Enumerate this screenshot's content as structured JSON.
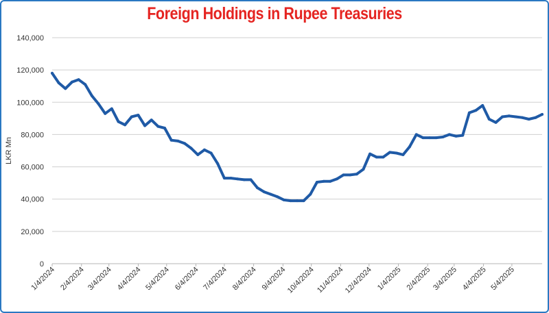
{
  "chart_data": {
    "type": "line",
    "title": "Foreign Holdings in Rupee Treasuries",
    "xlabel": "",
    "ylabel": "LKR Mn",
    "ylim": [
      0,
      140000
    ],
    "yticks": [
      "0",
      "20,000",
      "40,000",
      "60,000",
      "80,000",
      "100,000",
      "120,000",
      "140,000"
    ],
    "xticks": [
      "1/4/2024",
      "2/4/2024",
      "3/4/2024",
      "4/4/2024",
      "5/4/2024",
      "6/4/2024",
      "7/4/2024",
      "8/4/2024",
      "9/4/2024",
      "10/4/2024",
      "11/4/2024",
      "12/4/2024",
      "1/4/2025",
      "2/4/2025",
      "3/4/2025",
      "4/4/2025",
      "5/4/2025"
    ],
    "grid": true,
    "line_color": "#1f5aa6",
    "title_color": "#e52421",
    "series": [
      {
        "x": [
          "2024-01-04",
          "2024-01-11",
          "2024-01-18",
          "2024-01-25",
          "2024-02-01",
          "2024-02-08",
          "2024-02-15",
          "2024-02-22",
          "2024-02-29",
          "2024-03-07",
          "2024-03-14",
          "2024-03-21",
          "2024-03-28",
          "2024-04-04",
          "2024-04-11",
          "2024-04-18",
          "2024-04-25",
          "2024-05-02",
          "2024-05-09",
          "2024-05-16",
          "2024-05-23",
          "2024-05-30",
          "2024-06-06",
          "2024-06-13",
          "2024-06-20",
          "2024-06-27",
          "2024-07-04",
          "2024-07-11",
          "2024-07-18",
          "2024-07-25",
          "2024-08-01",
          "2024-08-08",
          "2024-08-15",
          "2024-08-22",
          "2024-08-29",
          "2024-09-05",
          "2024-09-12",
          "2024-09-19",
          "2024-09-26",
          "2024-10-03",
          "2024-10-10",
          "2024-10-17",
          "2024-10-24",
          "2024-10-31",
          "2024-11-07",
          "2024-11-14",
          "2024-11-21",
          "2024-11-28",
          "2024-12-05",
          "2024-12-12",
          "2024-12-19",
          "2024-12-26",
          "2025-01-02",
          "2025-01-09",
          "2025-01-16",
          "2025-01-23",
          "2025-01-30",
          "2025-02-06",
          "2025-02-13",
          "2025-02-20",
          "2025-02-27",
          "2025-03-06",
          "2025-03-13",
          "2025-03-20",
          "2025-03-27",
          "2025-04-03",
          "2025-04-10",
          "2025-04-17",
          "2025-04-24",
          "2025-05-01",
          "2025-05-08",
          "2025-05-15",
          "2025-05-22",
          "2025-05-29",
          "2025-06-05"
        ],
        "values": [
          118000,
          112000,
          108500,
          112500,
          114000,
          111000,
          104000,
          99000,
          93000,
          96000,
          88000,
          86000,
          91000,
          92000,
          85500,
          89000,
          85000,
          84000,
          76500,
          76000,
          74500,
          71500,
          67500,
          70500,
          68500,
          62000,
          53000,
          53000,
          52500,
          52000,
          52000,
          47000,
          44500,
          43000,
          41500,
          39500,
          39000,
          39000,
          39000,
          43000,
          50500,
          51000,
          51000,
          52500,
          55000,
          55000,
          55500,
          58500,
          68000,
          66000,
          66000,
          69000,
          68500,
          67500,
          72500,
          80000,
          78000,
          78000,
          78000,
          78500,
          80000,
          79000,
          79500,
          93500,
          95000,
          98000,
          89500,
          87500,
          91000,
          91500,
          91000,
          90500,
          89500,
          90500,
          92500
        ]
      }
    ]
  }
}
